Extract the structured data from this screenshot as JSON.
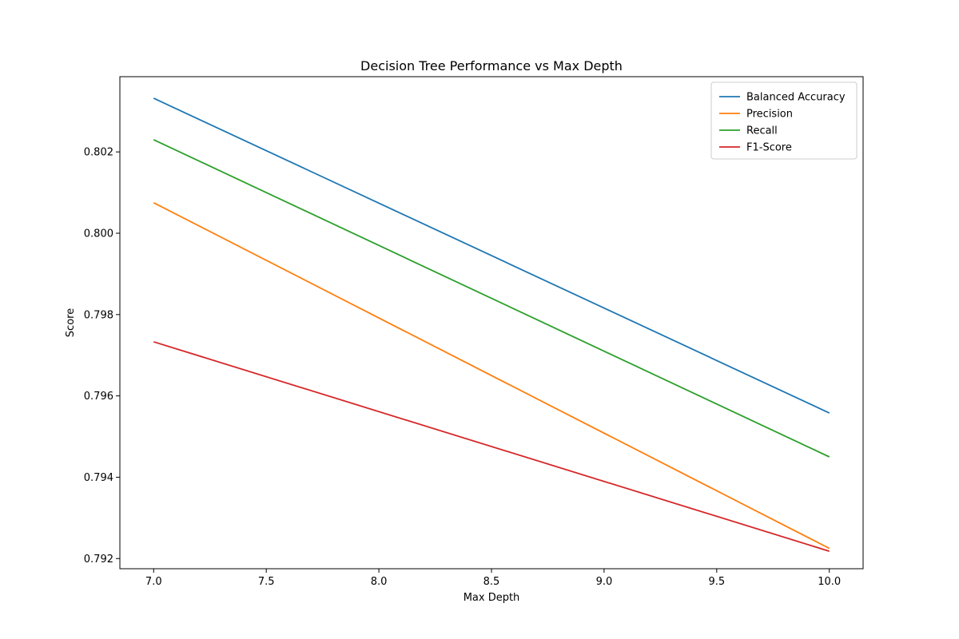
{
  "chart_data": {
    "type": "line",
    "title": "Decision Tree Performance vs Max Depth",
    "xlabel": "Max Depth",
    "ylabel": "Score",
    "x": [
      7,
      10
    ],
    "xlim": [
      6.85,
      10.15
    ],
    "ylim": [
      0.79175,
      0.80385
    ],
    "xticks": [
      7.0,
      7.5,
      8.0,
      8.5,
      9.0,
      9.5,
      10.0
    ],
    "xtick_labels": [
      "7.0",
      "7.5",
      "8.0",
      "8.5",
      "9.0",
      "9.5",
      "10.0"
    ],
    "yticks": [
      0.792,
      0.794,
      0.796,
      0.798,
      0.8,
      0.802
    ],
    "ytick_labels": [
      "0.792",
      "0.794",
      "0.796",
      "0.798",
      "0.800",
      "0.802"
    ],
    "grid": false,
    "legend_position": "top-right",
    "series": [
      {
        "name": "Balanced Accuracy",
        "color": "#1f77b4",
        "values": [
          0.80332,
          0.79558
        ]
      },
      {
        "name": "Precision",
        "color": "#ff7f0e",
        "values": [
          0.80075,
          0.79225
        ]
      },
      {
        "name": "Recall",
        "color": "#2ca02c",
        "values": [
          0.8023,
          0.7945
        ]
      },
      {
        "name": "F1-Score",
        "color": "#d62728",
        "values": [
          0.79733,
          0.79218
        ]
      }
    ]
  }
}
